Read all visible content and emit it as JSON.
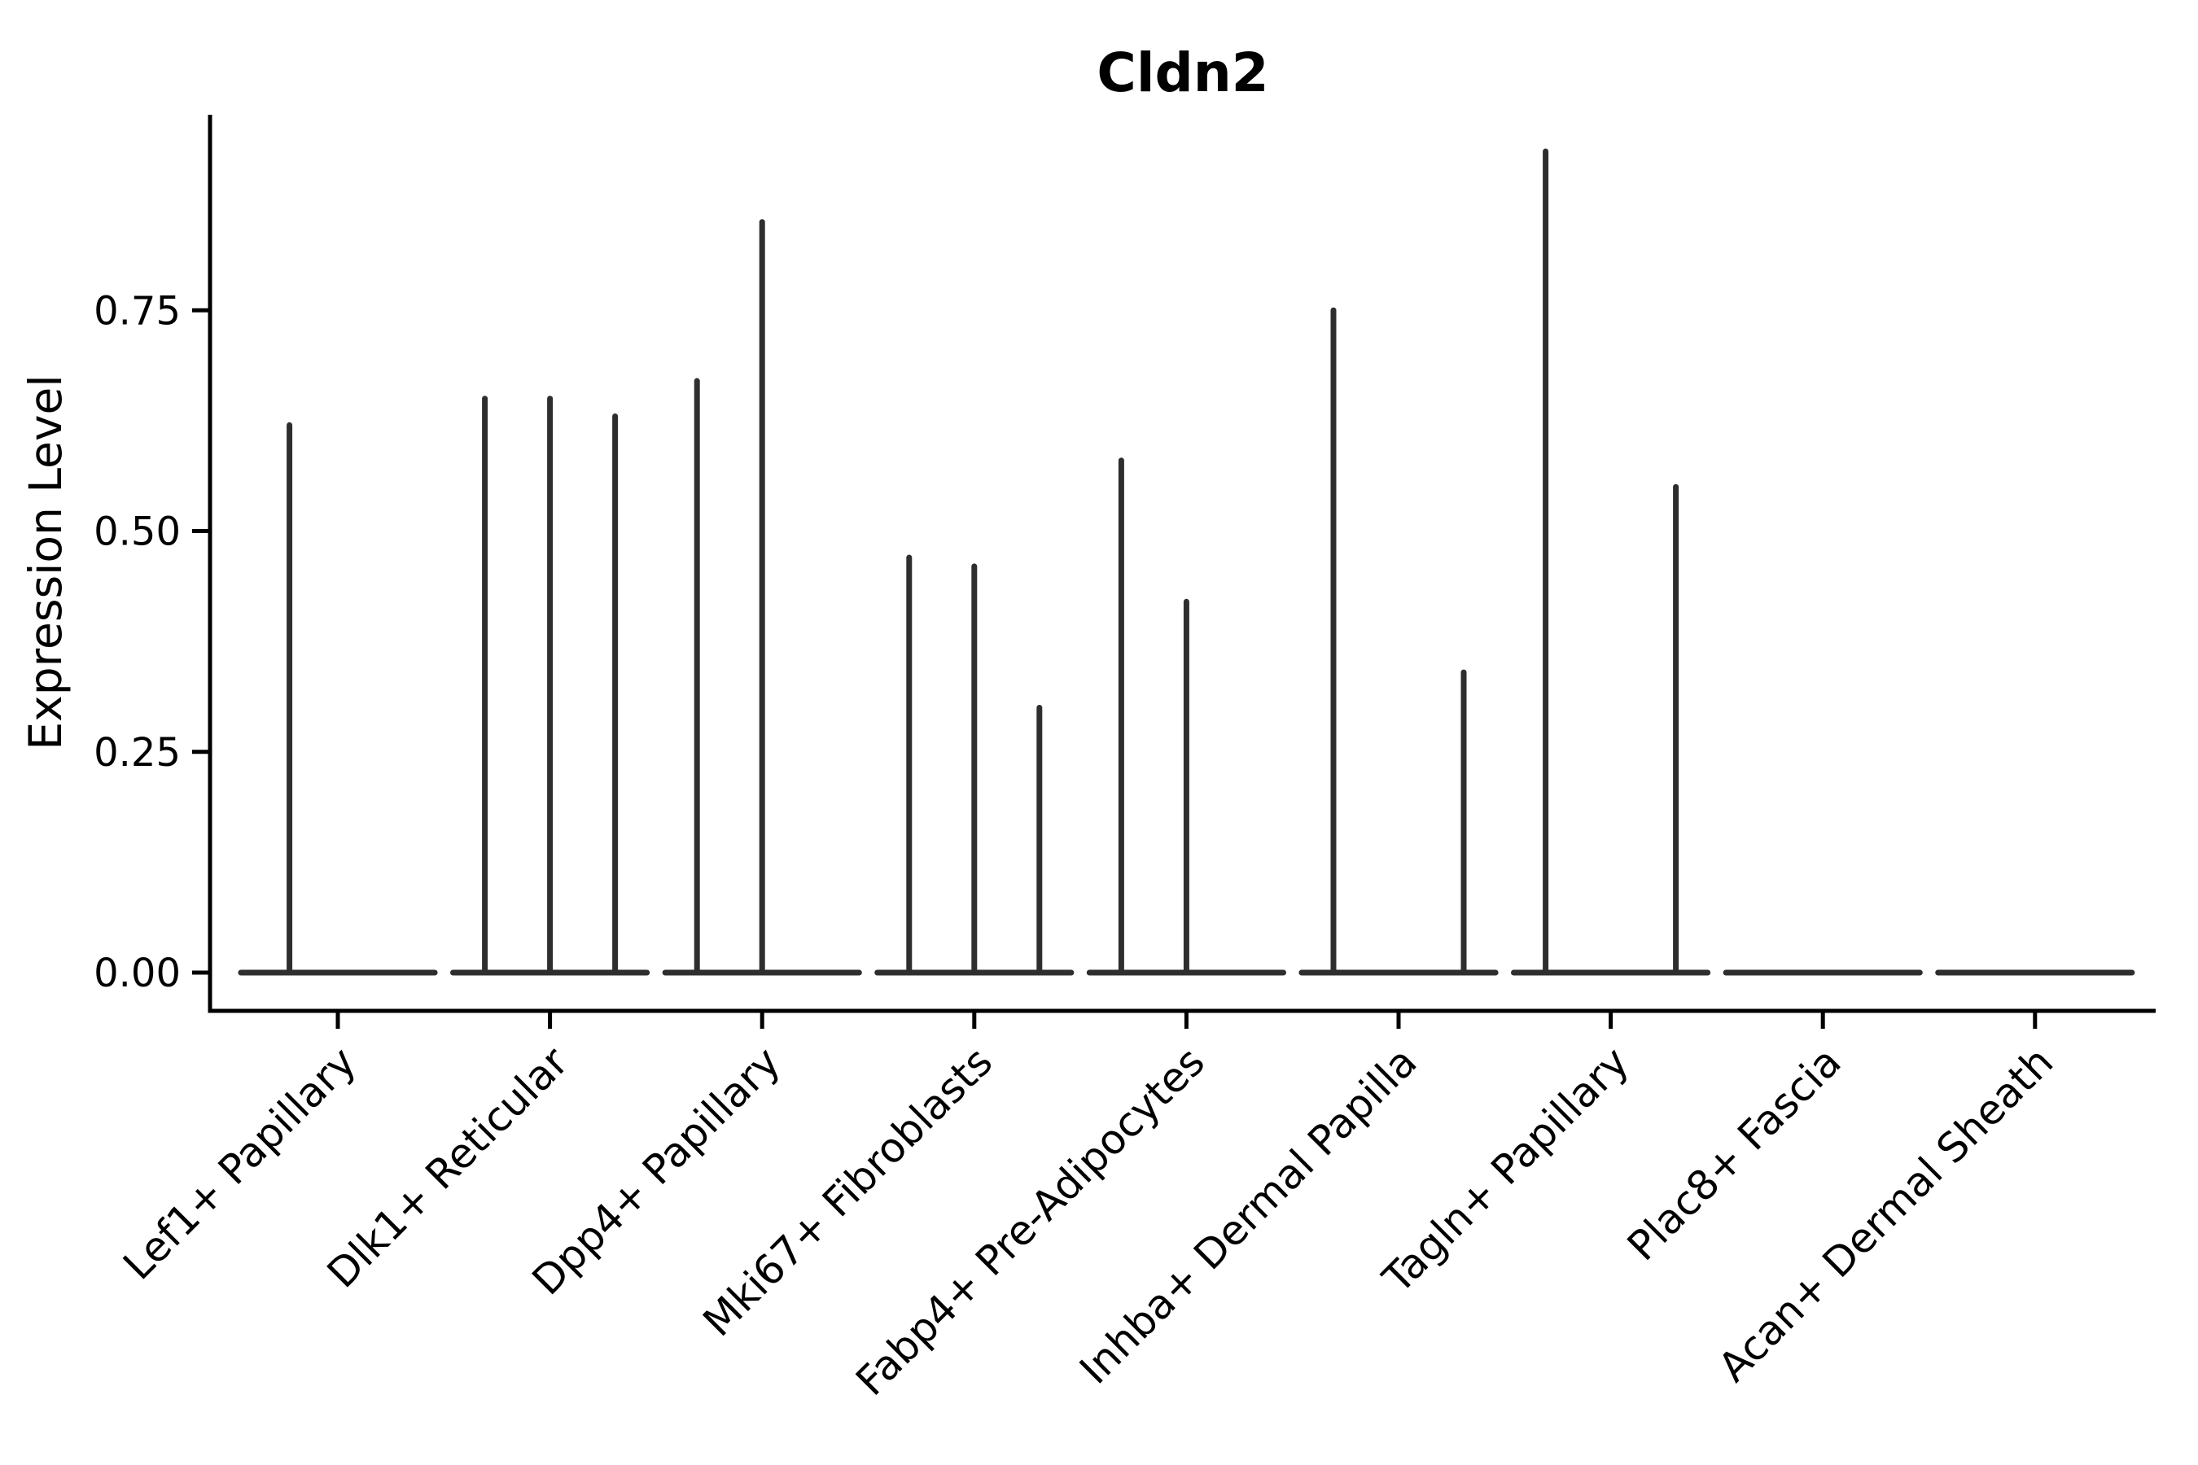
{
  "chart_data": {
    "type": "violin",
    "title": "Cldn2",
    "ylabel": "Expression Level",
    "xlabel": "",
    "grid": false,
    "legend": "none",
    "background_color": "#ffffff",
    "violin_color": "#2e2e2e",
    "axis_color": "#000000",
    "ylim": [
      -0.043,
      0.971
    ],
    "yticks": {
      "values": [
        0,
        0.25,
        0.5,
        0.75
      ],
      "labels": [
        "0.00",
        "0.25",
        "0.50",
        "0.75"
      ]
    },
    "categories": [
      "Lef1+ Papillary",
      "Dlk1+ Reticular",
      "Dpp4+ Papillary",
      "Mki67+ Fibroblasts",
      "Fabp4+ Pre-Adipocytes",
      "Inhba+ Dermal Papilla",
      "Tagln+ Papillary",
      "Plac8+ Fascia",
      "Acan+ Dermal Sheath"
    ],
    "violins": [
      {
        "label": "Lef1+ Papillary",
        "base_value": 0,
        "spikes": [
          {
            "offset": -0.228,
            "value": 0.62
          }
        ]
      },
      {
        "label": "Dlk1+ Reticular",
        "base_value": 0,
        "spikes": [
          {
            "offset": -0.307,
            "value": 0.65
          },
          {
            "offset": 0,
            "value": 0.65
          },
          {
            "offset": 0.307,
            "value": 0.63
          }
        ]
      },
      {
        "label": "Dpp4+ Papillary",
        "base_value": 0,
        "spikes": [
          {
            "offset": -0.307,
            "value": 0.67
          },
          {
            "offset": 0,
            "value": 0.85
          }
        ]
      },
      {
        "label": "Mki67+ Fibroblasts",
        "base_value": 0,
        "spikes": [
          {
            "offset": -0.307,
            "value": 0.47
          },
          {
            "offset": 0,
            "value": 0.46
          },
          {
            "offset": 0.307,
            "value": 0.3
          }
        ]
      },
      {
        "label": "Fabp4+ Pre-Adipocytes",
        "base_value": 0,
        "spikes": [
          {
            "offset": -0.307,
            "value": 0.58
          },
          {
            "offset": 0,
            "value": 0.42
          }
        ]
      },
      {
        "label": "Inhba+ Dermal Papilla",
        "base_value": 0,
        "spikes": [
          {
            "offset": -0.307,
            "value": 0.75
          },
          {
            "offset": 0.307,
            "value": 0.34
          }
        ]
      },
      {
        "label": "Tagln+ Papillary",
        "base_value": 0,
        "spikes": [
          {
            "offset": -0.307,
            "value": 0.93
          },
          {
            "offset": 0.307,
            "value": 0.55
          }
        ]
      },
      {
        "label": "Plac8+ Fascia",
        "base_value": 0,
        "spikes": []
      },
      {
        "label": "Acan+ Dermal Sheath",
        "base_value": 0,
        "spikes": []
      }
    ]
  }
}
